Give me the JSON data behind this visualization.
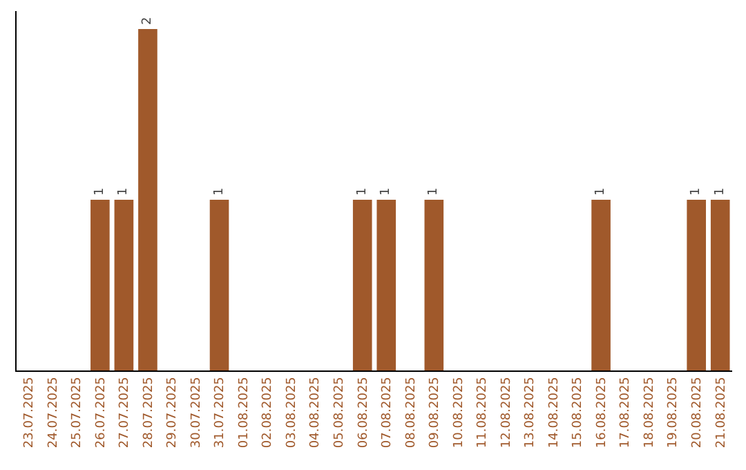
{
  "chart_data": {
    "type": "bar",
    "categories": [
      "23.07.2025",
      "24.07.2025",
      "25.07.2025",
      "26.07.2025",
      "27.07.2025",
      "28.07.2025",
      "29.07.2025",
      "30.07.2025",
      "31.07.2025",
      "01.08.2025",
      "02.08.2025",
      "03.08.2025",
      "04.08.2025",
      "05.08.2025",
      "06.08.2025",
      "07.08.2025",
      "08.08.2025",
      "09.08.2025",
      "10.08.2025",
      "11.08.2025",
      "12.08.2025",
      "13.08.2025",
      "14.08.2025",
      "15.08.2025",
      "16.08.2025",
      "17.08.2025",
      "18.08.2025",
      "19.08.2025",
      "20.08.2025",
      "21.08.2025"
    ],
    "values": [
      0,
      0,
      0,
      1,
      1,
      2,
      0,
      0,
      1,
      0,
      0,
      0,
      0,
      0,
      1,
      1,
      0,
      1,
      0,
      0,
      0,
      0,
      0,
      0,
      1,
      0,
      0,
      0,
      1,
      1
    ],
    "value_labels": [
      null,
      null,
      null,
      "1",
      "1",
      "2",
      null,
      null,
      "1",
      null,
      null,
      null,
      null,
      null,
      "1",
      "1",
      null,
      "1",
      null,
      null,
      null,
      null,
      null,
      null,
      "1",
      null,
      null,
      null,
      "1",
      "1"
    ],
    "color": "#a0592b",
    "tick_labels": "x",
    "legend": false
  }
}
